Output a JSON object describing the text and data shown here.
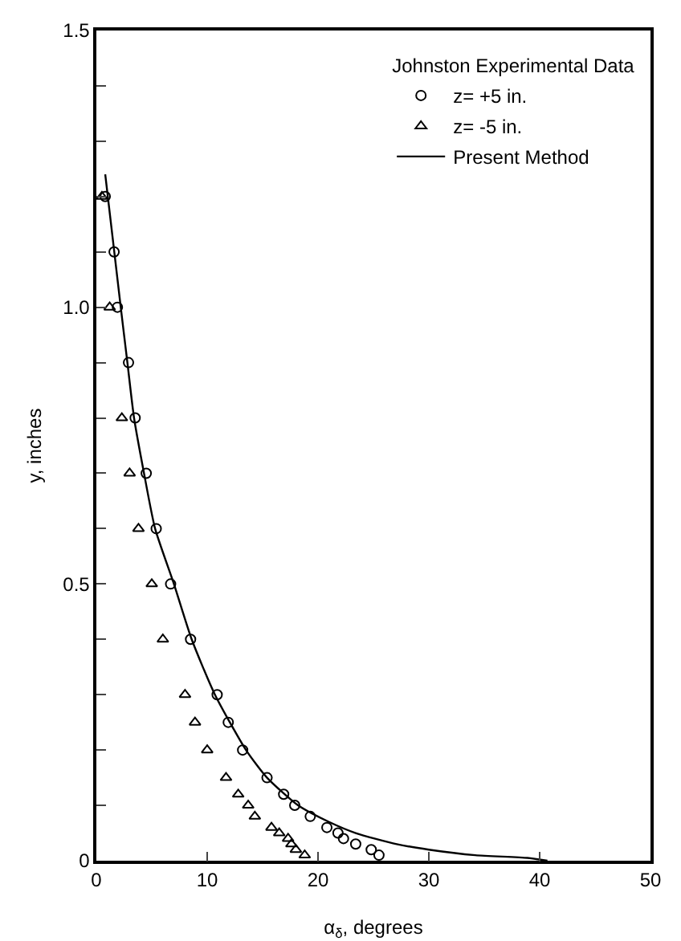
{
  "chart_data": {
    "type": "scatter",
    "xlabel": "α$_{δ}$, degrees",
    "ylabel": "y, inches",
    "legend_title": "Johnston Experimental Data",
    "legend": "top right",
    "grid": false,
    "xlim": [
      0,
      50
    ],
    "xticks": [
      0,
      10,
      20,
      30,
      40,
      50
    ],
    "ylim": [
      0,
      1.5
    ],
    "yticks": [
      0,
      {
        "value": 0.1,
        "label": null
      },
      {
        "value": 0.2,
        "label": null
      },
      {
        "value": 0.3,
        "label": null
      },
      {
        "value": 0.4,
        "label": null
      },
      0.5,
      {
        "value": 0.6,
        "label": null
      },
      {
        "value": 0.7,
        "label": null
      },
      {
        "value": 0.8,
        "label": null
      },
      {
        "value": 0.9,
        "label": null
      },
      {
        "value": 1,
        "label": "1.0"
      },
      {
        "value": 1.1,
        "label": null
      },
      {
        "value": 1.2,
        "label": null
      },
      {
        "value": 1.3,
        "label": null
      },
      {
        "value": 1.4,
        "label": null
      },
      1.5
    ],
    "series": [
      {
        "name": "z= +5 in.",
        "marker": "circle",
        "color": "#000000",
        "x": [
          0.8,
          1.6,
          1.9,
          2.9,
          3.5,
          4.5,
          5.4,
          6.7,
          8.5,
          10.9,
          11.9,
          13.2,
          15.4,
          16.9,
          17.9,
          19.3,
          20.8,
          21.8,
          22.3,
          23.4,
          24.8,
          25.5
        ],
        "values": [
          1.2,
          1.1,
          1.0,
          0.9,
          0.8,
          0.7,
          0.6,
          0.5,
          0.4,
          0.3,
          0.25,
          0.2,
          0.15,
          0.12,
          0.1,
          0.08,
          0.06,
          0.05,
          0.04,
          0.03,
          0.02,
          0.01
        ]
      },
      {
        "name": "z= -5 in.",
        "marker": "triangle",
        "color": "#000000",
        "x": [
          0.5,
          1.2,
          2.3,
          3.0,
          3.8,
          5.0,
          6.0,
          8.0,
          8.9,
          10.0,
          11.7,
          12.8,
          13.7,
          14.3,
          15.8,
          16.5,
          17.3,
          17.6,
          18.0,
          18.8
        ],
        "values": [
          1.2,
          1.0,
          0.8,
          0.7,
          0.6,
          0.5,
          0.4,
          0.3,
          0.25,
          0.2,
          0.15,
          0.12,
          0.1,
          0.08,
          0.06,
          0.05,
          0.04,
          0.03,
          0.02,
          0.01
        ]
      },
      {
        "name": "Present Method",
        "type": "line",
        "marker": "none",
        "color": "#000000",
        "x": [
          0.8,
          2.2,
          2.8,
          3.4,
          4.3,
          5.3,
          7.0,
          8.6,
          10.7,
          13.5,
          15.4,
          18.2,
          21,
          23.4,
          27.1,
          30,
          34.2,
          38.9,
          40.7
        ],
        "values": [
          1.24,
          1.0,
          0.9,
          0.8,
          0.7,
          0.6,
          0.5,
          0.4,
          0.3,
          0.2,
          0.15,
          0.1,
          0.07,
          0.05,
          0.03,
          0.02,
          0.01,
          0.005,
          0
        ]
      }
    ]
  }
}
